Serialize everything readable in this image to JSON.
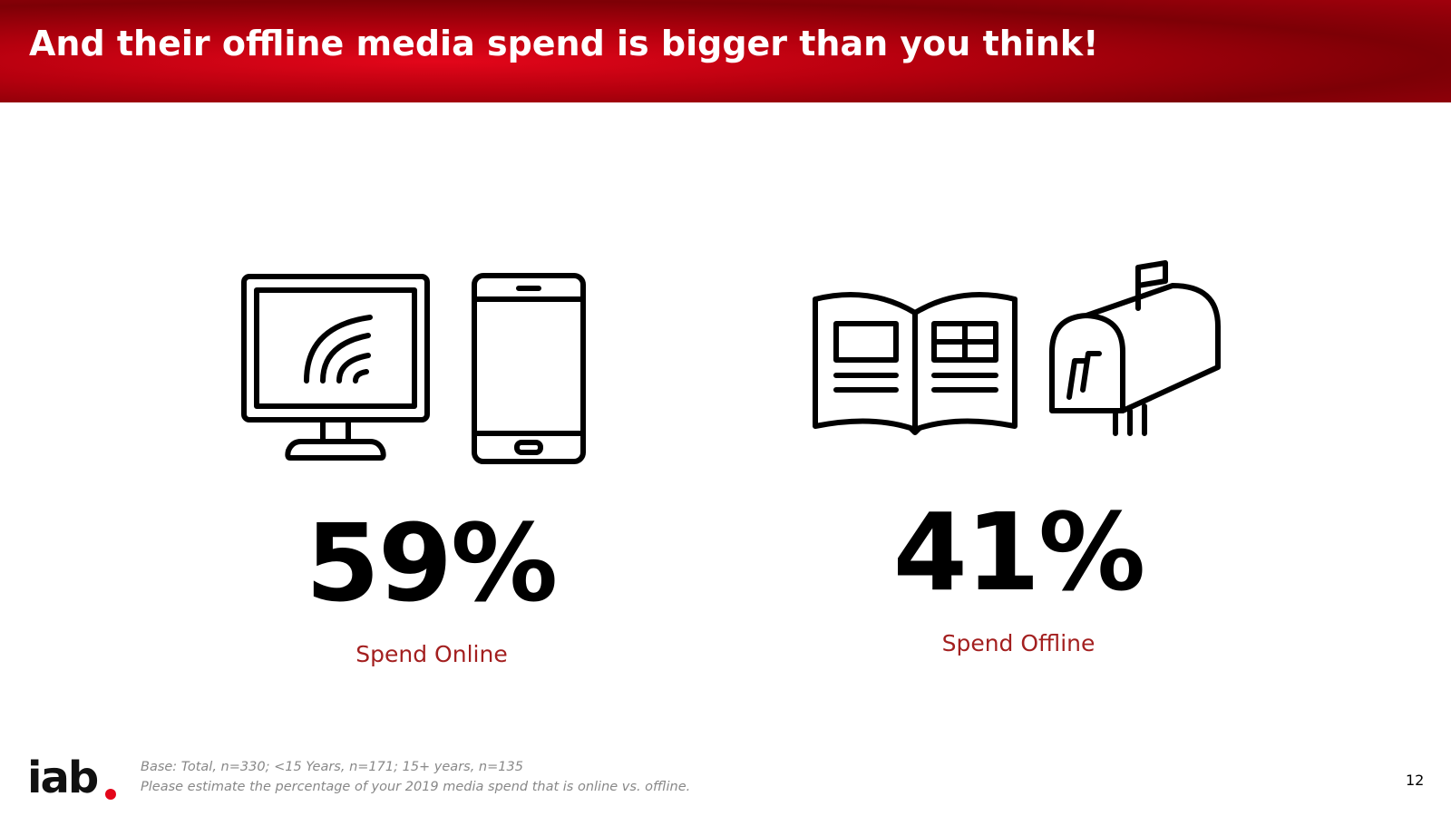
{
  "header": {
    "title": "And their offline media spend is bigger than you think!"
  },
  "stats": [
    {
      "value": "59%",
      "label": "Spend Online"
    },
    {
      "value": "41%",
      "label": "Spend Offline"
    }
  ],
  "footer": {
    "logo": "iab",
    "notes": [
      "Base: Total, n=330; <15 Years, n=171; 15+ years, n=135",
      "Please estimate the percentage of your 2019 media spend that is online vs. offline."
    ],
    "page_number": "12"
  }
}
